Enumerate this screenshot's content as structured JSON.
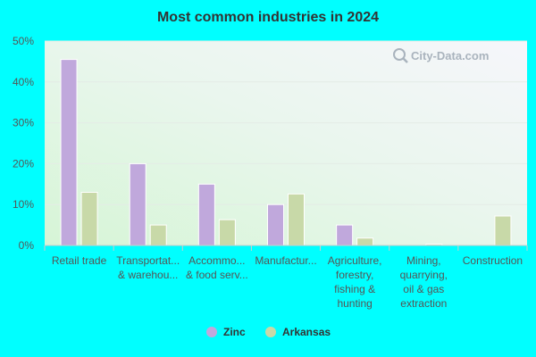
{
  "chart_data": {
    "type": "bar",
    "title": "Most common industries in 2024",
    "categories": [
      [
        "Retail trade"
      ],
      [
        "Transportat...",
        "& warehou..."
      ],
      [
        "Accommo...",
        "& food serv..."
      ],
      [
        "Manufactur..."
      ],
      [
        "Agriculture,",
        "forestry,",
        "fishing &",
        "hunting"
      ],
      [
        "Mining,",
        "quarrying,",
        "oil & gas",
        "extraction"
      ],
      [
        "Construction"
      ]
    ],
    "series": [
      {
        "name": "Zinc",
        "color": "#c0a8dc",
        "values": [
          45.5,
          20,
          15,
          10,
          5,
          0,
          0
        ]
      },
      {
        "name": "Arkansas",
        "color": "#c8d9a8",
        "values": [
          13,
          5,
          6.3,
          12.6,
          1.8,
          0.3,
          7.2
        ]
      }
    ],
    "ylim": [
      0,
      50
    ],
    "yticks": [
      "0%",
      "10%",
      "20%",
      "30%",
      "40%",
      "50%"
    ],
    "ytick_values": [
      0,
      10,
      20,
      30,
      40,
      50
    ],
    "legend_position": "bottom",
    "grid": true
  },
  "watermark": {
    "text": "City-Data.com",
    "icon": "magnifier-icon"
  }
}
